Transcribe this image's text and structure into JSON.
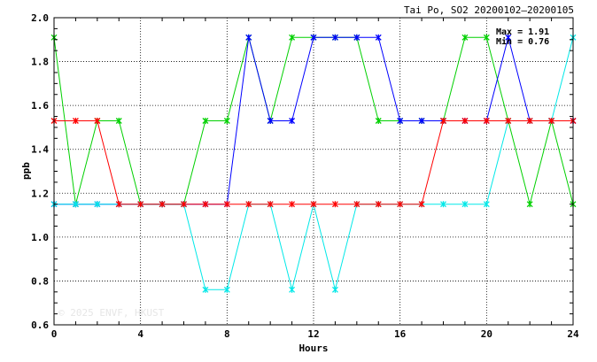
{
  "chart_data": {
    "type": "line",
    "title": "Tai Po, SO2 20200102–20200105",
    "xlabel": "Hours",
    "ylabel": "ppb",
    "xlim": [
      0,
      24
    ],
    "ylim": [
      0.6,
      2.0
    ],
    "xticks": [
      0,
      4,
      8,
      12,
      16,
      20,
      24
    ],
    "yticks": [
      0.6,
      0.8,
      1.0,
      1.2,
      1.4,
      1.6,
      1.8,
      2.0
    ],
    "x": [
      0,
      1,
      2,
      3,
      4,
      5,
      6,
      7,
      8,
      9,
      10,
      11,
      12,
      13,
      14,
      15,
      16,
      17,
      18,
      19,
      20,
      21,
      22,
      23,
      24
    ],
    "grid": true,
    "annotations": {
      "max": "Max = 1.91",
      "min": "Min = 0.76"
    },
    "watermark": "© 2025  ENVF, HKUST",
    "series": [
      {
        "color": "#00d000",
        "values": [
          1.91,
          1.15,
          1.53,
          1.53,
          1.15,
          1.15,
          1.15,
          1.53,
          1.53,
          1.91,
          1.53,
          1.91,
          1.91,
          1.91,
          1.91,
          1.53,
          1.53,
          1.53,
          1.53,
          1.91,
          1.91,
          1.53,
          1.15,
          1.53,
          1.15
        ]
      },
      {
        "color": "#0000ff",
        "values": [
          1.15,
          1.15,
          1.15,
          1.15,
          1.15,
          1.15,
          1.15,
          1.15,
          1.15,
          1.91,
          1.53,
          1.53,
          1.91,
          1.91,
          1.91,
          1.91,
          1.53,
          1.53,
          1.53,
          1.53,
          1.53,
          1.91,
          1.53,
          1.53,
          1.53
        ]
      },
      {
        "color": "#00e8e8",
        "values": [
          1.15,
          1.15,
          1.15,
          1.15,
          1.15,
          1.15,
          1.15,
          0.76,
          0.76,
          1.15,
          1.15,
          0.76,
          1.15,
          0.76,
          1.15,
          1.15,
          1.15,
          1.15,
          1.15,
          1.15,
          1.15,
          1.53,
          1.53,
          1.53,
          1.91
        ]
      },
      {
        "color": "#ff0000",
        "values": [
          1.53,
          1.53,
          1.53,
          1.15,
          1.15,
          1.15,
          1.15,
          1.15,
          1.15,
          1.15,
          1.15,
          1.15,
          1.15,
          1.15,
          1.15,
          1.15,
          1.15,
          1.15,
          1.53,
          1.53,
          1.53,
          1.53,
          1.53,
          1.53,
          1.53
        ]
      }
    ]
  }
}
